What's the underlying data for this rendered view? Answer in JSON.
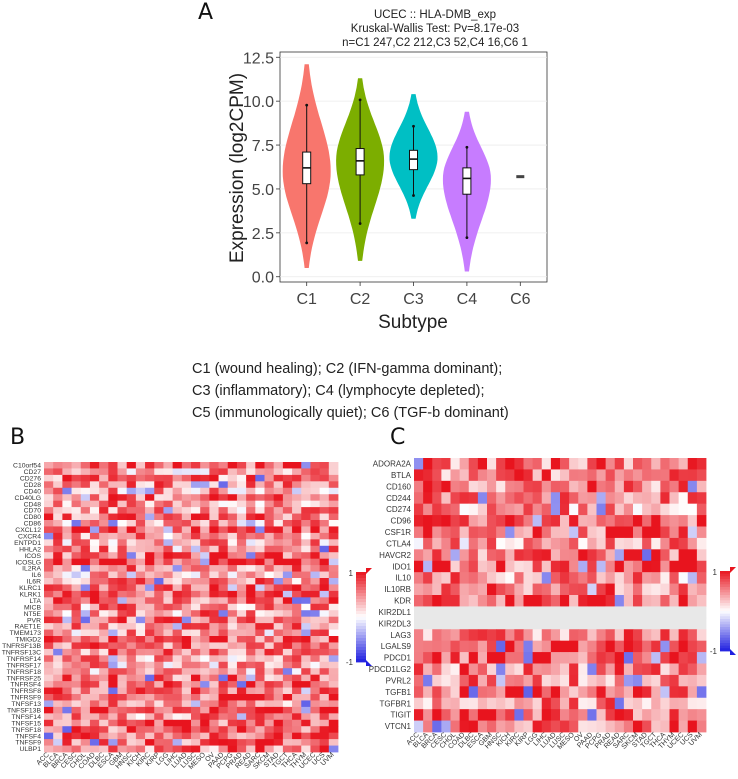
{
  "panels": {
    "a": "A",
    "b": "B",
    "c": "C"
  },
  "violin": {
    "title_lines": [
      "UCEC :: HLA-DMB_exp",
      "Kruskal-Wallis Test: Pv=8.17e-03",
      "n=C1 247,C2 212,C3 52,C4 16,C6 1"
    ],
    "ylabel": "Expression (log2CPM)",
    "xlabel": "Subtype",
    "yticks": [
      "0.0",
      "2.5",
      "5.0",
      "7.5",
      "10.0",
      "12.5"
    ],
    "ylim": [
      -0.3,
      12.8
    ],
    "categories": [
      "C1",
      "C2",
      "C3",
      "C4",
      "C6"
    ],
    "colors": [
      "#f8766d",
      "#7cae00",
      "#00bfc4",
      "#c77cff",
      "#444444"
    ],
    "groups": [
      {
        "name": "C1",
        "min": 0.5,
        "max": 12.1,
        "q1": 5.3,
        "median": 6.2,
        "q3": 7.1,
        "wlo": 1.9,
        "whi": 9.8,
        "peak": 6.0,
        "n": 247
      },
      {
        "name": "C2",
        "min": 0.9,
        "max": 11.3,
        "q1": 5.8,
        "median": 6.6,
        "q3": 7.3,
        "wlo": 3.0,
        "whi": 10.1,
        "peak": 6.6,
        "n": 212
      },
      {
        "name": "C3",
        "min": 3.3,
        "max": 10.4,
        "q1": 6.1,
        "median": 6.7,
        "q3": 7.2,
        "wlo": 4.6,
        "whi": 8.6,
        "peak": 6.8,
        "n": 52
      },
      {
        "name": "C4",
        "min": 0.3,
        "max": 9.4,
        "q1": 4.7,
        "median": 5.6,
        "q3": 6.2,
        "wlo": 2.2,
        "whi": 7.4,
        "peak": 5.6,
        "n": 16
      },
      {
        "name": "C6",
        "value": 5.7,
        "n": 1
      }
    ]
  },
  "subtype_legend": [
    "C1 (wound healing); C2 (IFN-gamma dominant);",
    "C3 (inflammatory); C4 (lymphocyte depleted);",
    "C5 (immunologically quiet); C6 (TGF-b dominant)"
  ],
  "heatmap_columns": [
    "ACC",
    "BLCA",
    "BRCA",
    "CESC",
    "CHOL",
    "COAD",
    "DLBC",
    "ESCA",
    "GBM",
    "HNSC",
    "KICH",
    "KIRC",
    "KIRP",
    "LGG",
    "LIHC",
    "LUAD",
    "LUSC",
    "MESO",
    "OV",
    "PAAD",
    "PCPG",
    "PRAD",
    "READ",
    "SARC",
    "SKCM",
    "STAD",
    "TGCT",
    "THCA",
    "THYM",
    "UCEC",
    "UCS",
    "UVM"
  ],
  "heatmap_b_rows": [
    "C10orf54",
    "CD27",
    "CD276",
    "CD28",
    "CD40",
    "CD40LG",
    "CD48",
    "CD70",
    "CD80",
    "CD86",
    "CXCL12",
    "CXCR4",
    "ENTPD1",
    "HHLA2",
    "ICOS",
    "ICOSLG",
    "IL2RA",
    "IL6",
    "IL6R",
    "KLRC1",
    "KLRK1",
    "LTA",
    "MICB",
    "NT5E",
    "PVR",
    "RAET1E",
    "TMEM173",
    "TMIGD2",
    "TNFRSF13B",
    "TNFRSF13C",
    "TNFRSF14",
    "TNFRSF17",
    "TNFRSF18",
    "TNFRSF25",
    "TNFRSF4",
    "TNFRSF8",
    "TNFRSF9",
    "TNFSF13",
    "TNFSF13B",
    "TNFSF14",
    "TNFSF15",
    "TNFSF18",
    "TNFSF4",
    "TNFSF9",
    "ULBP1"
  ],
  "heatmap_c_rows": [
    "ADORA2A",
    "BTLA",
    "CD160",
    "CD244",
    "CD274",
    "CD96",
    "CSF1R",
    "CTLA4",
    "HAVCR2",
    "IDO1",
    "IL10",
    "IL10RB",
    "KDR",
    "KIR2DL1",
    "KIR2DL3",
    "LAG3",
    "LGALS9",
    "PDCD1",
    "PDCD1LG2",
    "PVRL2",
    "TGFB1",
    "TGFBR1",
    "TIGIT",
    "VTCN1"
  ],
  "colorbar": {
    "max_label": "1",
    "min_label": "-1",
    "high_color": "#e8141e",
    "mid_color": "#ffffff",
    "low_color": "#1f1fe0"
  }
}
